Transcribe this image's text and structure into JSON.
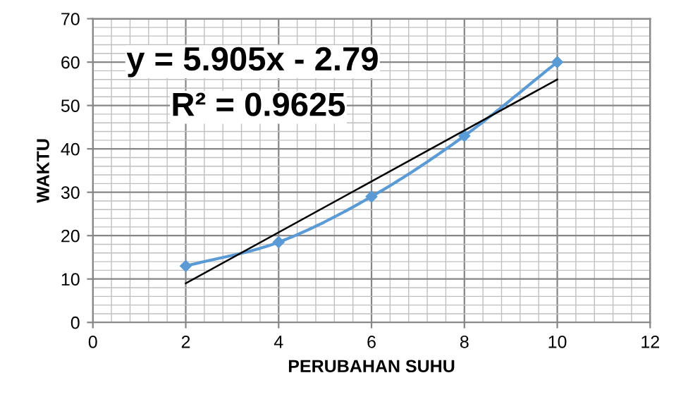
{
  "chart_data": {
    "type": "line",
    "xlabel": "PERUBAHAN SUHU",
    "ylabel": "WAKTU",
    "xlim": [
      0,
      12
    ],
    "xticks": [
      0,
      2,
      4,
      6,
      8,
      10,
      12
    ],
    "ylim": [
      0,
      70
    ],
    "yticks": [
      0,
      10,
      20,
      30,
      40,
      50,
      60,
      70
    ],
    "grid": true,
    "marker": "diamond",
    "line_style": "solid",
    "series": [
      {
        "color": "#5b9bd5",
        "x": [
          2,
          4,
          6,
          8,
          10
        ],
        "values": [
          13,
          18.5,
          29,
          43,
          60
        ]
      },
      {
        "color": "#000000",
        "x": [
          2,
          10
        ],
        "values": [
          9,
          56
        ],
        "marker": "none"
      }
    ],
    "annotations": [
      "y = 5.905x - 2.79",
      "R² = 0.9625"
    ]
  }
}
